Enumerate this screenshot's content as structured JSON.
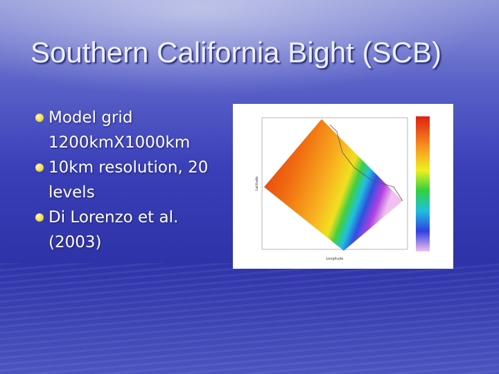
{
  "slide": {
    "title": "Southern California Bight (SCB)",
    "bullets": [
      "Model grid 1200kmX1000km",
      "10km resolution, 20 levels",
      "Di Lorenzo et al. (2003)"
    ],
    "figure": {
      "y_axis_label": "Latitude",
      "x_axis_label": "Longitude"
    }
  }
}
